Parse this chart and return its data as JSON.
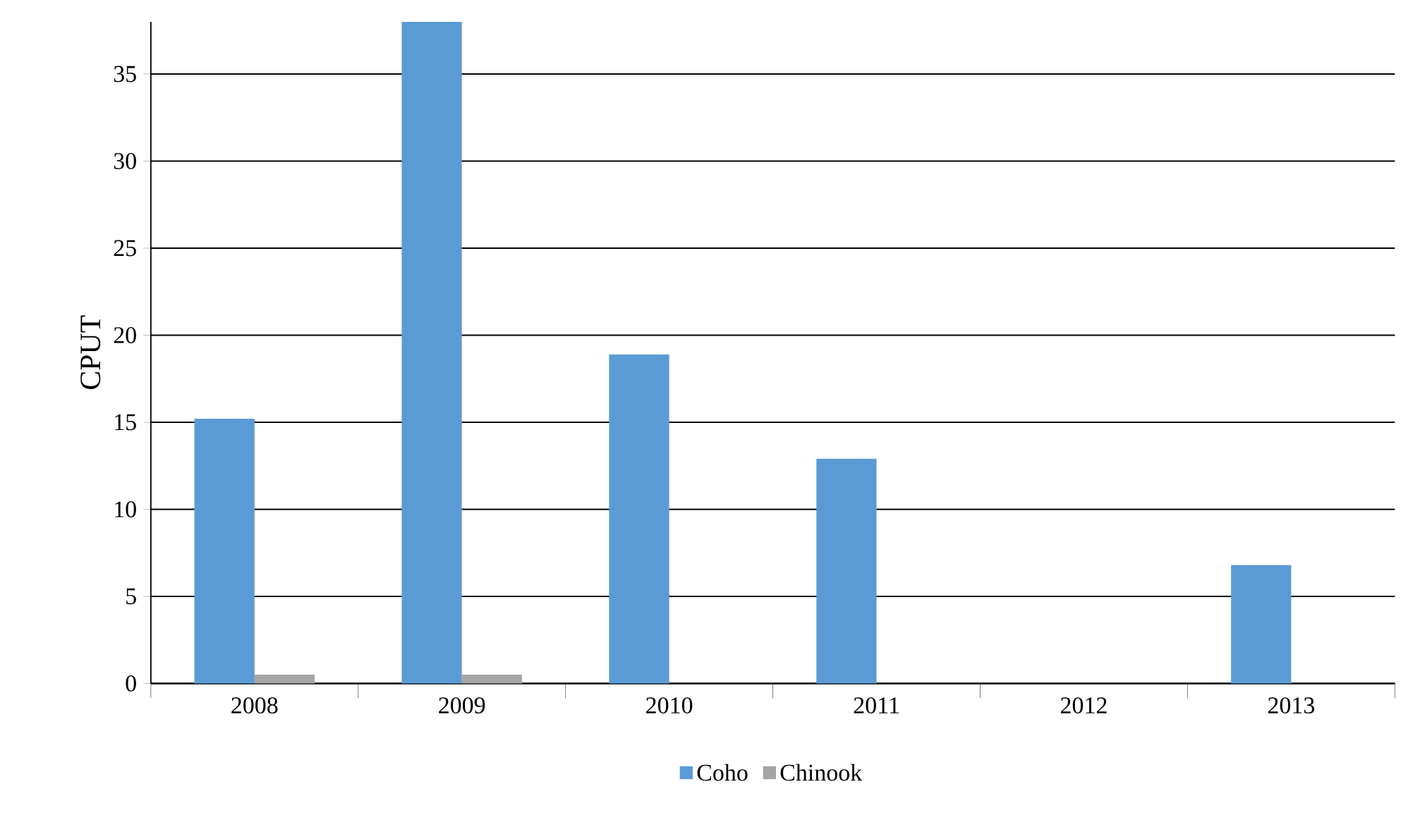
{
  "chart_data": {
    "type": "bar",
    "ylabel": "CPUT",
    "categories": [
      "2008",
      "2009",
      "2010",
      "2011",
      "2012",
      "2013"
    ],
    "series": [
      {
        "name": "Coho",
        "color": "#5b9bd5",
        "values": [
          15.2,
          38,
          18.9,
          12.9,
          0,
          6.8
        ]
      },
      {
        "name": "Chinook",
        "color": "#a5a5a5",
        "values": [
          0.5,
          0.5,
          0,
          0,
          0,
          0
        ]
      }
    ],
    "ylim": [
      0,
      38
    ],
    "yticks": [
      0,
      5,
      10,
      15,
      20,
      25,
      30,
      35
    ],
    "grid": "y",
    "legend": "bottom"
  }
}
